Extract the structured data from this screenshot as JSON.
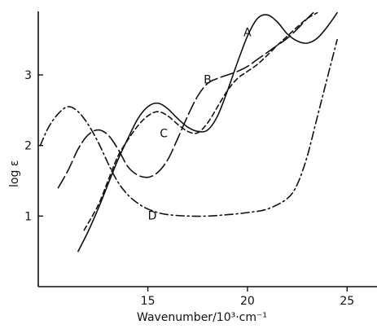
{
  "chart_data": {
    "type": "line",
    "title": "",
    "xlabel": "Wavenumber/10³·cm⁻¹",
    "ylabel": "log ε",
    "xlim": [
      9.5,
      26.5
    ],
    "ylim": [
      0,
      3.9
    ],
    "xticks": [
      15,
      20,
      25
    ],
    "yticks": [
      1,
      2,
      3
    ],
    "grid": false,
    "series": [
      {
        "name": "A",
        "style": "solid",
        "label_at": [
          19.8,
          3.55
        ],
        "points": [
          [
            11.5,
            0.5
          ],
          [
            12.0,
            0.78
          ],
          [
            12.5,
            1.1
          ],
          [
            13.0,
            1.45
          ],
          [
            13.5,
            1.8
          ],
          [
            14.0,
            2.1
          ],
          [
            14.5,
            2.38
          ],
          [
            15.0,
            2.55
          ],
          [
            15.5,
            2.6
          ],
          [
            16.0,
            2.52
          ],
          [
            16.5,
            2.38
          ],
          [
            17.0,
            2.26
          ],
          [
            17.5,
            2.2
          ],
          [
            18.0,
            2.22
          ],
          [
            18.5,
            2.42
          ],
          [
            19.0,
            2.78
          ],
          [
            19.5,
            3.18
          ],
          [
            20.0,
            3.55
          ],
          [
            20.5,
            3.8
          ],
          [
            21.0,
            3.85
          ],
          [
            21.5,
            3.75
          ],
          [
            22.0,
            3.58
          ],
          [
            22.5,
            3.48
          ],
          [
            23.0,
            3.45
          ],
          [
            23.5,
            3.52
          ],
          [
            24.0,
            3.68
          ],
          [
            24.5,
            3.88
          ]
        ]
      },
      {
        "name": "B",
        "style": "longdash",
        "label_at": [
          17.8,
          2.88
        ],
        "points": [
          [
            10.5,
            1.4
          ],
          [
            11.0,
            1.65
          ],
          [
            11.5,
            1.95
          ],
          [
            12.0,
            2.15
          ],
          [
            12.5,
            2.22
          ],
          [
            13.0,
            2.15
          ],
          [
            13.5,
            1.95
          ],
          [
            14.0,
            1.7
          ],
          [
            14.5,
            1.58
          ],
          [
            15.0,
            1.55
          ],
          [
            15.5,
            1.62
          ],
          [
            16.0,
            1.8
          ],
          [
            16.5,
            2.1
          ],
          [
            17.0,
            2.42
          ],
          [
            17.5,
            2.7
          ],
          [
            18.0,
            2.88
          ],
          [
            18.5,
            2.95
          ],
          [
            19.0,
            3.0
          ],
          [
            19.5,
            3.05
          ],
          [
            20.0,
            3.12
          ],
          [
            20.5,
            3.22
          ],
          [
            21.0,
            3.32
          ],
          [
            21.5,
            3.42
          ],
          [
            22.0,
            3.52
          ],
          [
            22.5,
            3.65
          ],
          [
            23.0,
            3.8
          ],
          [
            23.3,
            3.88
          ]
        ]
      },
      {
        "name": "C",
        "style": "shortdash",
        "label_at": [
          15.6,
          2.12
        ],
        "points": [
          [
            11.8,
            0.8
          ],
          [
            12.5,
            1.15
          ],
          [
            13.0,
            1.5
          ],
          [
            13.5,
            1.85
          ],
          [
            14.0,
            2.08
          ],
          [
            14.5,
            2.28
          ],
          [
            15.0,
            2.42
          ],
          [
            15.5,
            2.48
          ],
          [
            16.0,
            2.42
          ],
          [
            16.5,
            2.3
          ],
          [
            17.0,
            2.2
          ],
          [
            17.5,
            2.18
          ],
          [
            18.0,
            2.32
          ],
          [
            18.5,
            2.55
          ],
          [
            19.0,
            2.78
          ],
          [
            19.5,
            2.95
          ],
          [
            20.0,
            3.05
          ],
          [
            20.5,
            3.15
          ],
          [
            21.0,
            3.28
          ],
          [
            21.5,
            3.42
          ],
          [
            22.0,
            3.55
          ],
          [
            22.5,
            3.68
          ],
          [
            23.0,
            3.8
          ],
          [
            23.5,
            3.88
          ]
        ]
      },
      {
        "name": "D",
        "style": "dashdot",
        "label_at": [
          15.0,
          0.95
        ],
        "points": [
          [
            9.6,
            2.0
          ],
          [
            10.0,
            2.25
          ],
          [
            10.5,
            2.45
          ],
          [
            11.0,
            2.55
          ],
          [
            11.5,
            2.48
          ],
          [
            12.0,
            2.3
          ],
          [
            12.5,
            2.05
          ],
          [
            13.0,
            1.75
          ],
          [
            13.5,
            1.48
          ],
          [
            14.0,
            1.3
          ],
          [
            14.5,
            1.18
          ],
          [
            15.0,
            1.1
          ],
          [
            15.5,
            1.05
          ],
          [
            16.0,
            1.02
          ],
          [
            17.0,
            1.0
          ],
          [
            18.0,
            1.0
          ],
          [
            19.0,
            1.02
          ],
          [
            20.0,
            1.05
          ],
          [
            21.0,
            1.1
          ],
          [
            22.0,
            1.25
          ],
          [
            22.5,
            1.45
          ],
          [
            23.0,
            1.85
          ],
          [
            23.5,
            2.4
          ],
          [
            24.0,
            2.95
          ],
          [
            24.5,
            3.5
          ]
        ]
      }
    ]
  }
}
